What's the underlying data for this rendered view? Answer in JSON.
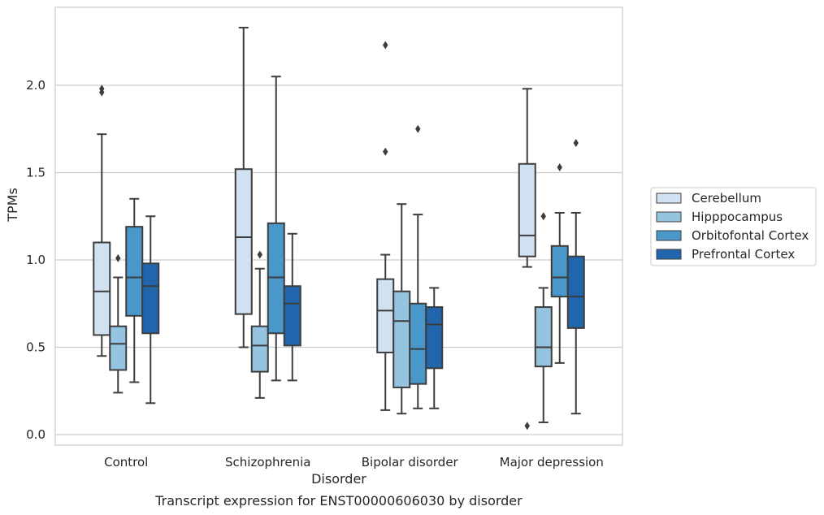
{
  "chart_data": {
    "type": "box",
    "xlabel": "Disorder",
    "ylabel": "TPMs",
    "caption": "Transcript expression for ENST00000606030 by disorder",
    "ylim": [
      -0.06,
      2.46
    ],
    "yticks": [
      "0.0",
      "0.5",
      "1.0",
      "1.5",
      "2.0"
    ],
    "ytick_values": [
      0.0,
      0.5,
      1.0,
      1.5,
      2.0
    ],
    "grid": "horizontal",
    "legend_position": "right",
    "categories": [
      "Control",
      "Schizophrenia",
      "Bipolar disorder",
      "Major depression"
    ],
    "series": [
      {
        "name": "Cerebellum",
        "color": "#d0e1f2",
        "boxes": [
          {
            "whislo": 0.45,
            "q1": 0.57,
            "med": 0.82,
            "q3": 1.1,
            "whishi": 1.72,
            "fliers": [
              1.96,
              1.98
            ]
          },
          {
            "whislo": 0.5,
            "q1": 0.69,
            "med": 1.13,
            "q3": 1.52,
            "whishi": 2.33,
            "fliers": []
          },
          {
            "whislo": 0.14,
            "q1": 0.47,
            "med": 0.71,
            "q3": 0.89,
            "whishi": 1.03,
            "fliers": [
              1.62,
              2.23
            ]
          },
          {
            "whislo": 0.96,
            "q1": 1.02,
            "med": 1.14,
            "q3": 1.55,
            "whishi": 1.98,
            "fliers": [
              0.05
            ]
          }
        ]
      },
      {
        "name": "Hipppocampus",
        "color": "#94c4df",
        "boxes": [
          {
            "whislo": 0.24,
            "q1": 0.37,
            "med": 0.52,
            "q3": 0.62,
            "whishi": 0.9,
            "fliers": [
              1.01
            ]
          },
          {
            "whislo": 0.21,
            "q1": 0.36,
            "med": 0.51,
            "q3": 0.62,
            "whishi": 0.95,
            "fliers": [
              1.03
            ]
          },
          {
            "whislo": 0.12,
            "q1": 0.27,
            "med": 0.65,
            "q3": 0.82,
            "whishi": 1.32,
            "fliers": []
          },
          {
            "whislo": 0.07,
            "q1": 0.39,
            "med": 0.5,
            "q3": 0.73,
            "whishi": 0.84,
            "fliers": [
              1.25
            ]
          }
        ]
      },
      {
        "name": "Orbitofontal Cortex",
        "color": "#4a98c9",
        "boxes": [
          {
            "whislo": 0.3,
            "q1": 0.68,
            "med": 0.9,
            "q3": 1.19,
            "whishi": 1.35,
            "fliers": []
          },
          {
            "whislo": 0.31,
            "q1": 0.58,
            "med": 0.9,
            "q3": 1.21,
            "whishi": 2.05,
            "fliers": []
          },
          {
            "whislo": 0.15,
            "q1": 0.29,
            "med": 0.49,
            "q3": 0.75,
            "whishi": 1.26,
            "fliers": [
              1.75
            ]
          },
          {
            "whislo": 0.41,
            "q1": 0.79,
            "med": 0.9,
            "q3": 1.08,
            "whishi": 1.27,
            "fliers": [
              1.53
            ]
          }
        ]
      },
      {
        "name": "Prefrontal Cortex",
        "color": "#2166ac",
        "boxes": [
          {
            "whislo": 0.18,
            "q1": 0.58,
            "med": 0.85,
            "q3": 0.98,
            "whishi": 1.25,
            "fliers": []
          },
          {
            "whislo": 0.31,
            "q1": 0.51,
            "med": 0.75,
            "q3": 0.85,
            "whishi": 1.15,
            "fliers": []
          },
          {
            "whislo": 0.15,
            "q1": 0.38,
            "med": 0.63,
            "q3": 0.73,
            "whishi": 0.84,
            "fliers": []
          },
          {
            "whislo": 0.12,
            "q1": 0.61,
            "med": 0.79,
            "q3": 1.02,
            "whishi": 1.27,
            "fliers": [
              1.67
            ]
          }
        ]
      }
    ]
  }
}
